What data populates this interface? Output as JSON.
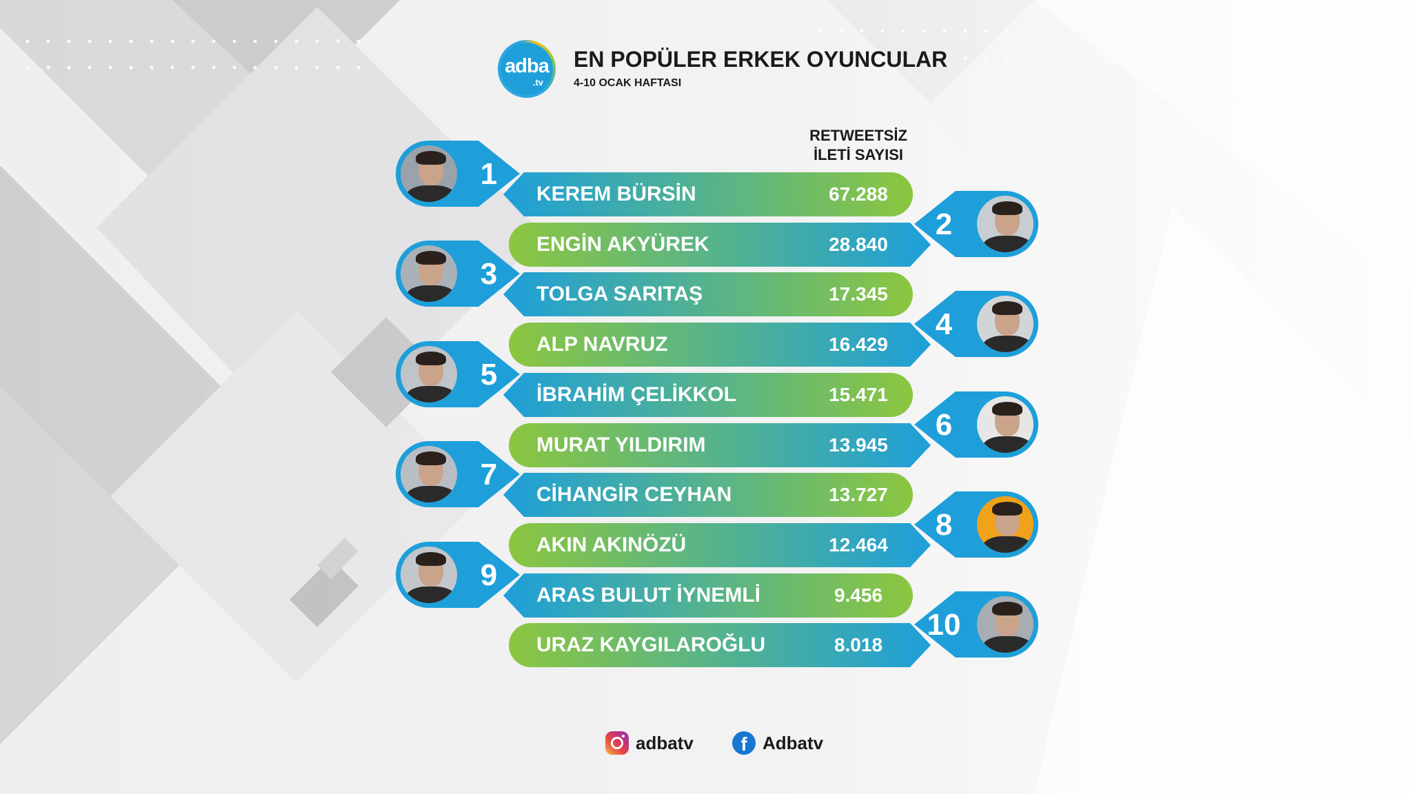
{
  "header": {
    "logo_main": "adba",
    "logo_sub": ".tv",
    "title": "EN POPÜLER ERKEK OYUNCULAR",
    "subtitle": "4-10 OCAK HAFTASI"
  },
  "chart_data": {
    "type": "table",
    "title": "EN POPÜLER ERKEK OYUNCULAR",
    "subtitle": "4-10 OCAK HAFTASI",
    "value_header": [
      "RETWEETSİZ",
      "İLETİ SAYISI"
    ],
    "rows": [
      {
        "rank": "1",
        "name": "KEREM BÜRSİN",
        "value": "67.288"
      },
      {
        "rank": "2",
        "name": "ENGİN AKYÜREK",
        "value": "28.840"
      },
      {
        "rank": "3",
        "name": "TOLGA SARITAŞ",
        "value": "17.345"
      },
      {
        "rank": "4",
        "name": "ALP NAVRUZ",
        "value": "16.429"
      },
      {
        "rank": "5",
        "name": "İBRAHİM ÇELİKKOL",
        "value": "15.471"
      },
      {
        "rank": "6",
        "name": "MURAT YILDIRIM",
        "value": "13.945"
      },
      {
        "rank": "7",
        "name": "CİHANGİR CEYHAN",
        "value": "13.727"
      },
      {
        "rank": "8",
        "name": "AKIN AKINÖZÜ",
        "value": "12.464"
      },
      {
        "rank": "9",
        "name": "ARAS BULUT İYNEMLİ",
        "value": "9.456"
      },
      {
        "rank": "10",
        "name": "URAZ KAYGILAROĞLU",
        "value": "8.018"
      }
    ]
  },
  "colors": {
    "blue": "#1e9fda",
    "green": "#8cc63f",
    "teal": "#3fb3b0"
  },
  "footer": {
    "instagram": "adbatv",
    "facebook": "Adbatv",
    "instagram_icon": "instagram-icon",
    "facebook_icon": "facebook-icon"
  }
}
